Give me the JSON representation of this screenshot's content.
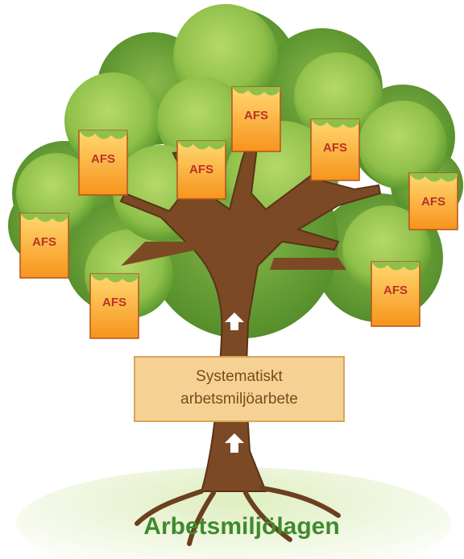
{
  "afs_documents": [
    {
      "label": "AFS"
    },
    {
      "label": "AFS"
    },
    {
      "label": "AFS"
    },
    {
      "label": "AFS"
    },
    {
      "label": "AFS"
    },
    {
      "label": "AFS"
    },
    {
      "label": "AFS"
    },
    {
      "label": "AFS"
    }
  ],
  "sign": {
    "lines": [
      "Systematiskt",
      "arbetsmiljöarbete"
    ]
  },
  "foundation": {
    "label": "Arbetsmiljölagen"
  }
}
